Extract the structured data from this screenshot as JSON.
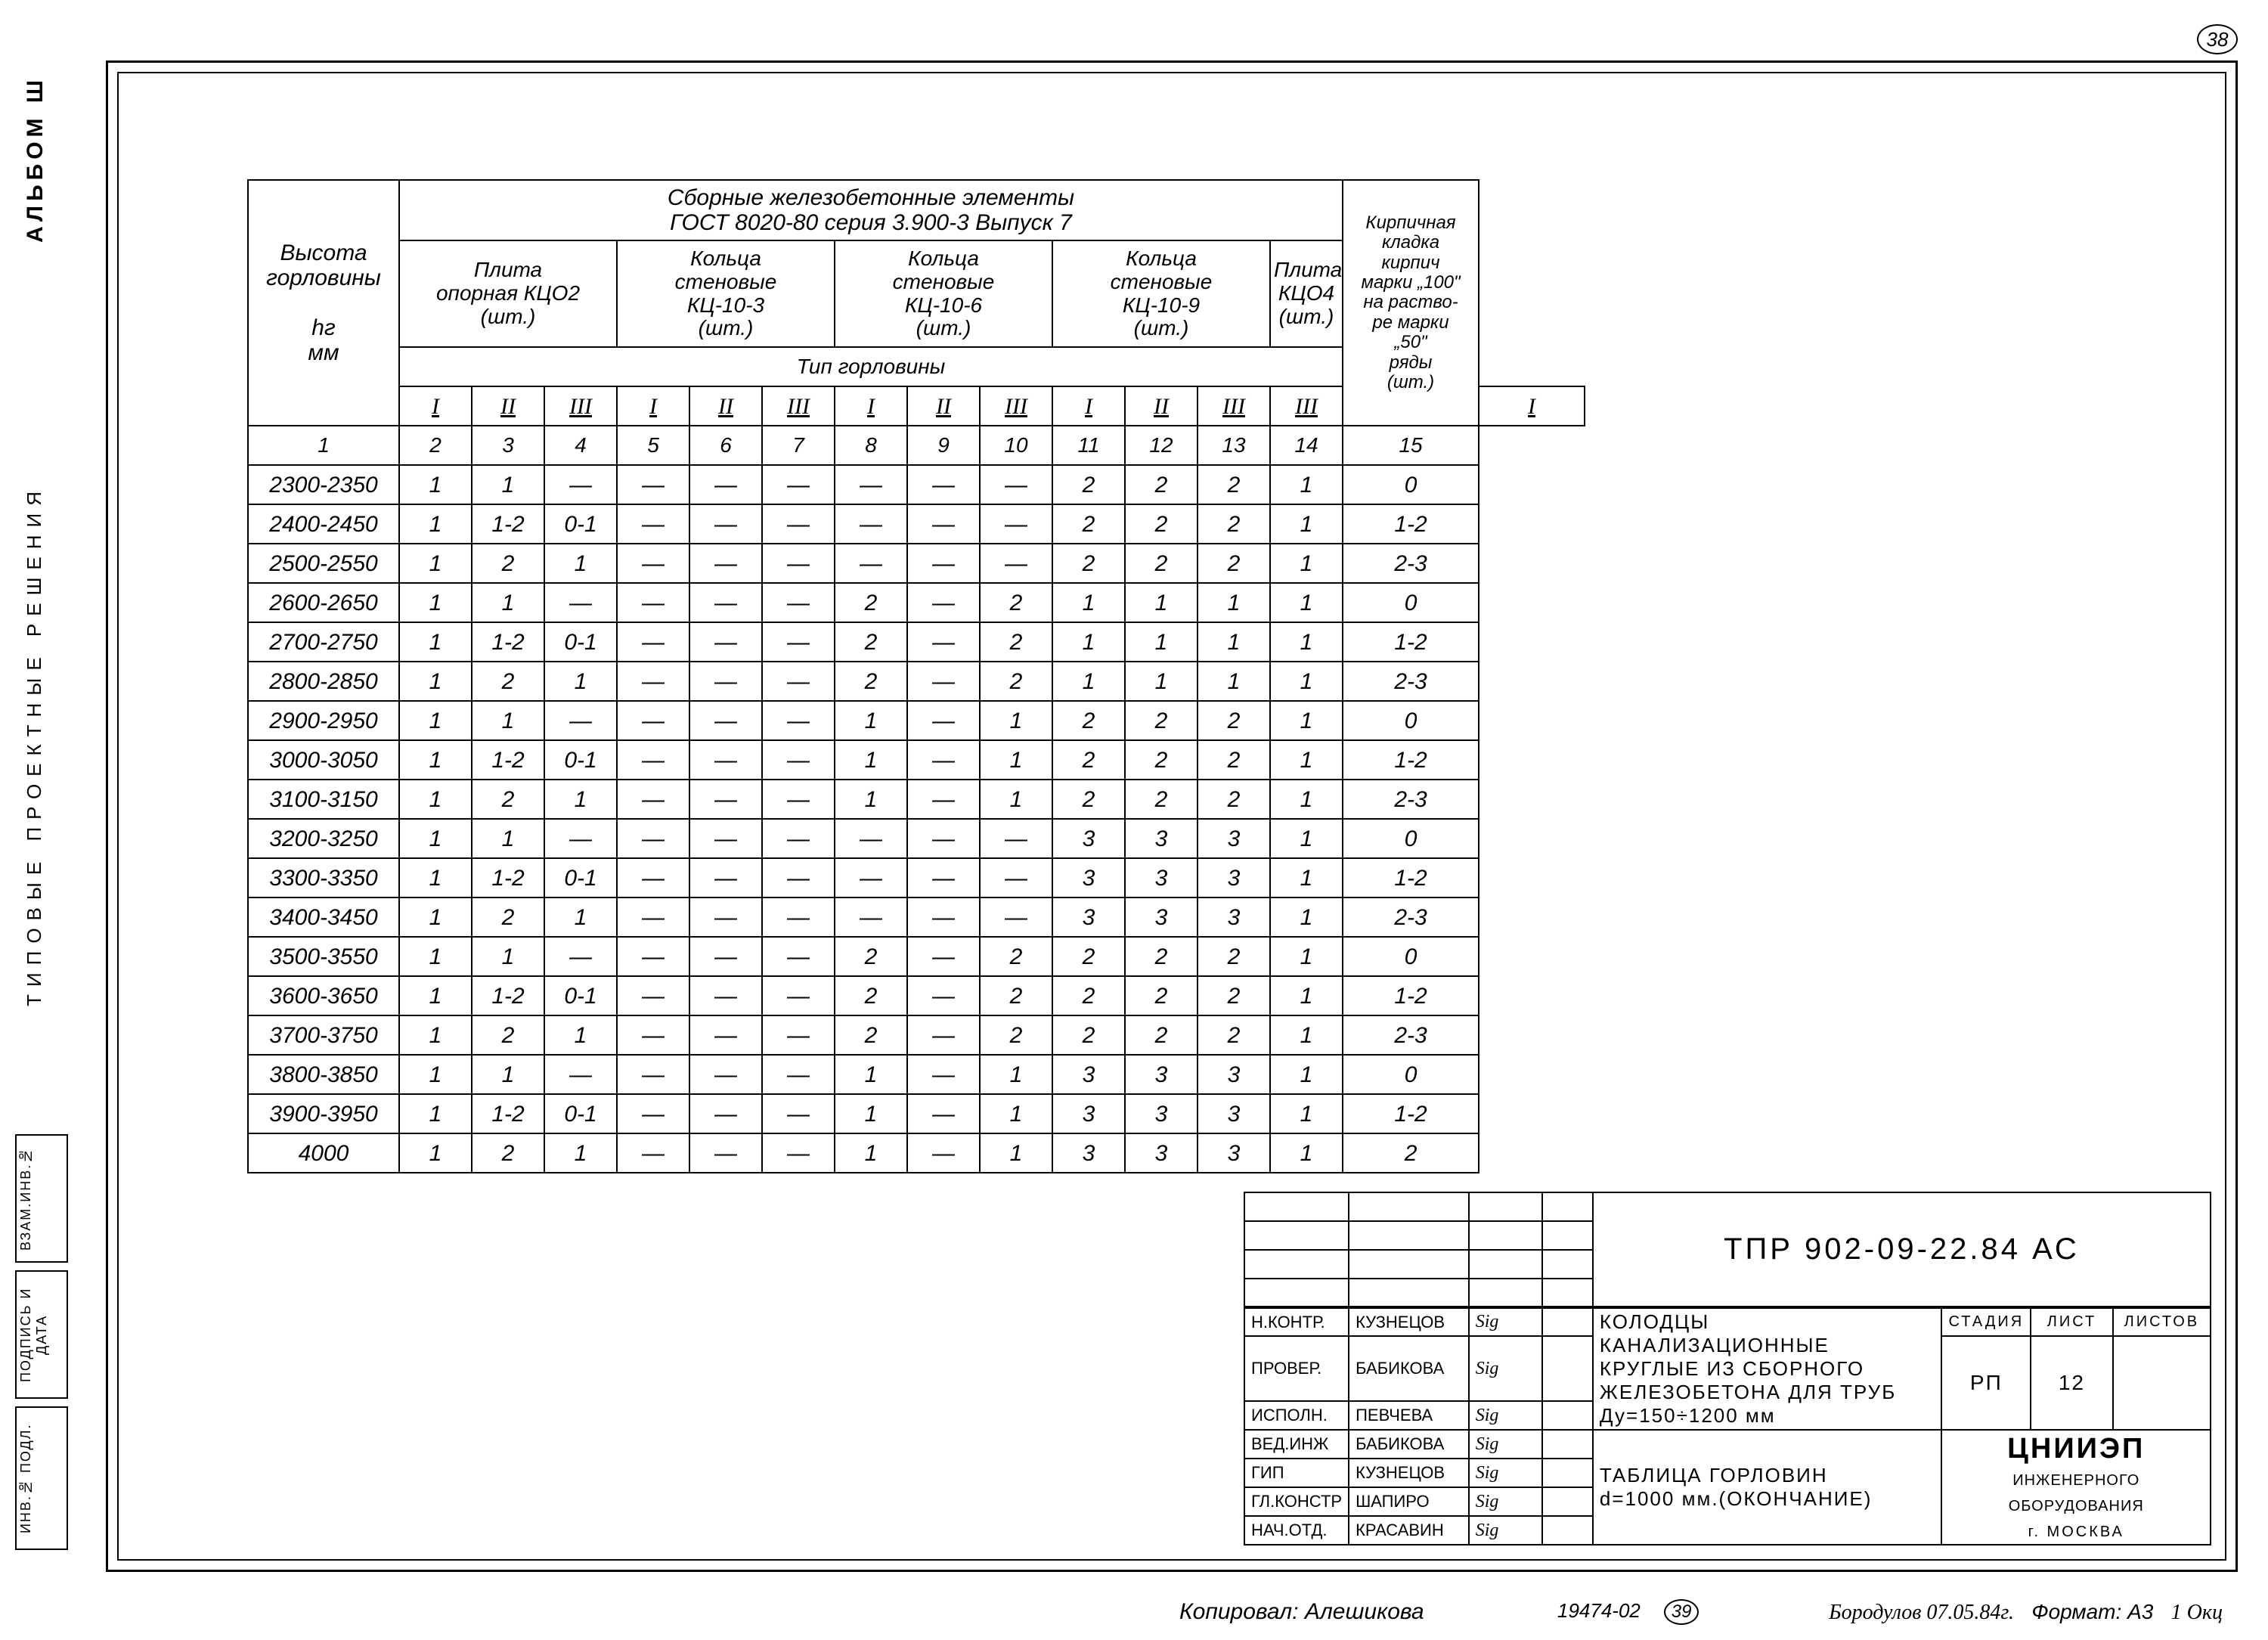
{
  "page_number_top": "38",
  "side": {
    "album": "Альбом Ш",
    "middle": "Типовые   проектные   решения",
    "b1": "ВЗАМ.ИНВ.№",
    "b2": "ПОДПИСЬ И ДАТА",
    "b3": "ИНВ.№ ПОДЛ."
  },
  "table": {
    "head": {
      "hr_label_1": "Высота",
      "hr_label_2": "горловины",
      "hr_label_3": "hг",
      "hr_label_4": "мм",
      "super": "Сборные железобетонные элементы",
      "super2": "ГОСТ 8020-80       серия 3.900-3       Выпуск 7",
      "last_col_1": "Кирпичная",
      "last_col_2": "кладка",
      "last_col_3": "кирпич",
      "last_col_4": "марки „100\"",
      "last_col_5": "на раство-",
      "last_col_6": "ре марки",
      "last_col_7": "„50\"",
      "last_col_8": "ряды",
      "last_col_9": "(шт.)",
      "g1a": "Плита",
      "g1b": "опорная КЦО2",
      "g1c": "(шт.)",
      "g2a": "Кольца",
      "g2b": "стеновые",
      "g2c": "КЦ-10-3",
      "g2d": "(шт.)",
      "g3a": "Кольца",
      "g3b": "стеновые",
      "g3c": "КЦ-10-6",
      "g3d": "(шт.)",
      "g4a": "Кольца",
      "g4b": "стеновые",
      "g4c": "КЦ-10-9",
      "g4d": "(шт.)",
      "g5a": "Плита",
      "g5b": "КЦО4",
      "g5c": "(шт.)",
      "tip": "Тип    горловины",
      "romans": [
        "I",
        "II",
        "III",
        "I",
        "II",
        "III",
        "I",
        "II",
        "III",
        "I",
        "II",
        "III",
        "III",
        "I"
      ],
      "colnums": [
        "1",
        "2",
        "3",
        "4",
        "5",
        "6",
        "7",
        "8",
        "9",
        "10",
        "11",
        "12",
        "13",
        "14",
        "15"
      ]
    },
    "rows": [
      {
        "h": "2300-2350",
        "c": [
          "1",
          "1",
          "—",
          "—",
          "—",
          "—",
          "—",
          "—",
          "—",
          "2",
          "2",
          "2",
          "1",
          "0"
        ]
      },
      {
        "h": "2400-2450",
        "c": [
          "1",
          "1-2",
          "0-1",
          "—",
          "—",
          "—",
          "—",
          "—",
          "—",
          "2",
          "2",
          "2",
          "1",
          "1-2"
        ]
      },
      {
        "h": "2500-2550",
        "c": [
          "1",
          "2",
          "1",
          "—",
          "—",
          "—",
          "—",
          "—",
          "—",
          "2",
          "2",
          "2",
          "1",
          "2-3"
        ]
      },
      {
        "h": "2600-2650",
        "c": [
          "1",
          "1",
          "—",
          "—",
          "—",
          "—",
          "2",
          "—",
          "2",
          "1",
          "1",
          "1",
          "1",
          "0"
        ]
      },
      {
        "h": "2700-2750",
        "c": [
          "1",
          "1-2",
          "0-1",
          "—",
          "—",
          "—",
          "2",
          "—",
          "2",
          "1",
          "1",
          "1",
          "1",
          "1-2"
        ]
      },
      {
        "h": "2800-2850",
        "c": [
          "1",
          "2",
          "1",
          "—",
          "—",
          "—",
          "2",
          "—",
          "2",
          "1",
          "1",
          "1",
          "1",
          "2-3"
        ]
      },
      {
        "h": "2900-2950",
        "c": [
          "1",
          "1",
          "—",
          "—",
          "—",
          "—",
          "1",
          "—",
          "1",
          "2",
          "2",
          "2",
          "1",
          "0"
        ]
      },
      {
        "h": "3000-3050",
        "c": [
          "1",
          "1-2",
          "0-1",
          "—",
          "—",
          "—",
          "1",
          "—",
          "1",
          "2",
          "2",
          "2",
          "1",
          "1-2"
        ]
      },
      {
        "h": "3100-3150",
        "c": [
          "1",
          "2",
          "1",
          "—",
          "—",
          "—",
          "1",
          "—",
          "1",
          "2",
          "2",
          "2",
          "1",
          "2-3"
        ]
      },
      {
        "h": "3200-3250",
        "c": [
          "1",
          "1",
          "—",
          "—",
          "—",
          "—",
          "—",
          "—",
          "—",
          "3",
          "3",
          "3",
          "1",
          "0"
        ]
      },
      {
        "h": "3300-3350",
        "c": [
          "1",
          "1-2",
          "0-1",
          "—",
          "—",
          "—",
          "—",
          "—",
          "—",
          "3",
          "3",
          "3",
          "1",
          "1-2"
        ]
      },
      {
        "h": "3400-3450",
        "c": [
          "1",
          "2",
          "1",
          "—",
          "—",
          "—",
          "—",
          "—",
          "—",
          "3",
          "3",
          "3",
          "1",
          "2-3"
        ]
      },
      {
        "h": "3500-3550",
        "c": [
          "1",
          "1",
          "—",
          "—",
          "—",
          "—",
          "2",
          "—",
          "2",
          "2",
          "2",
          "2",
          "1",
          "0"
        ]
      },
      {
        "h": "3600-3650",
        "c": [
          "1",
          "1-2",
          "0-1",
          "—",
          "—",
          "—",
          "2",
          "—",
          "2",
          "2",
          "2",
          "2",
          "1",
          "1-2"
        ]
      },
      {
        "h": "3700-3750",
        "c": [
          "1",
          "2",
          "1",
          "—",
          "—",
          "—",
          "2",
          "—",
          "2",
          "2",
          "2",
          "2",
          "1",
          "2-3"
        ]
      },
      {
        "h": "3800-3850",
        "c": [
          "1",
          "1",
          "—",
          "—",
          "—",
          "—",
          "1",
          "—",
          "1",
          "3",
          "3",
          "3",
          "1",
          "0"
        ]
      },
      {
        "h": "3900-3950",
        "c": [
          "1",
          "1-2",
          "0-1",
          "—",
          "—",
          "—",
          "1",
          "—",
          "1",
          "3",
          "3",
          "3",
          "1",
          "1-2"
        ]
      },
      {
        "h": "4000",
        "c": [
          "1",
          "2",
          "1",
          "—",
          "—",
          "—",
          "1",
          "—",
          "1",
          "3",
          "3",
          "3",
          "1",
          "2"
        ]
      }
    ]
  },
  "tb": {
    "code": "ТПР  902-09-22.84      АС",
    "roles": [
      {
        "role": "Н.КОНТР.",
        "name": "КУЗНЕЦОВ"
      },
      {
        "role": "ПРОВЕР.",
        "name": "БАБИКОВА"
      },
      {
        "role": "ИСПОЛН.",
        "name": "ПЕВЧЕВА"
      },
      {
        "role": "ВЕД.ИНЖ",
        "name": "БАБИКОВА"
      },
      {
        "role": "ГИП",
        "name": "КУЗНЕЦОВ"
      },
      {
        "role": "ГЛ.КОНСТР",
        "name": "ШАПИРО"
      },
      {
        "role": "НАЧ.ОТД.",
        "name": "КРАСАВИН"
      }
    ],
    "desc1": "КОЛОДЦЫ КАНАЛИЗАЦИОННЫЕ КРУГЛЫЕ ИЗ СБОРНОГО ЖЕЛЕЗОБЕТОНА ДЛЯ ТРУБ  Ду=150÷1200 мм",
    "desc2a": "ТАБЛИЦА  ГОРЛОВИН",
    "desc2b": "d=1000 мм.(ОКОНЧАНИЕ)",
    "stage_h": "СТАДИЯ",
    "sheet_h": "ЛИСТ",
    "sheets_h": "ЛИСТОВ",
    "stage": "РП",
    "sheet": "12",
    "sheets": "",
    "org1": "ЦНИИЭП",
    "org2": "ИНЖЕНЕРНОГО ОБОРУДОВАНИЯ",
    "org3": "г. МОСКВА"
  },
  "footer": {
    "copied": "Копировал: Алешикова",
    "ref_num": "19474-02",
    "ref_circ": "39",
    "right1": "Бородулов 07.05.84г.",
    "right2": "Формат: А3",
    "right3": "1 Окц"
  },
  "style": {
    "bg": "#ffffff",
    "line": "#000000",
    "font_main": "Comic Sans MS, Segoe Script, cursive",
    "font_block": "Arial, sans-serif",
    "cell_fontsize_pt": 22,
    "header_fontsize_pt": 22,
    "titleblock_code_fontsize_pt": 30
  }
}
